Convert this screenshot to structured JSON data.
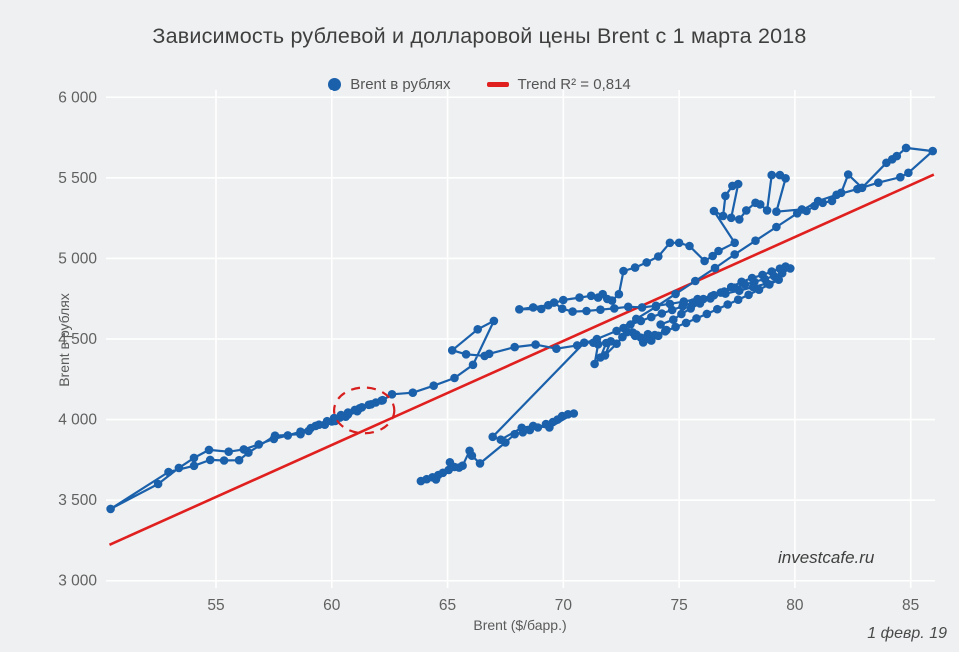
{
  "title": "Зависимость рублевой и долларовой цены Brent с 1 марта 2018",
  "watermark": "investcafe.ru",
  "date_label": "1 февр. 19",
  "legend": {
    "series_label": "Brent в рублях",
    "trend_label": "Trend R² = 0,814"
  },
  "colors": {
    "background": "#eff0f1",
    "grid": "#ffffff",
    "series": "#1a60ab",
    "trend": "#e01f1f",
    "annotation": "#d81f1f",
    "tick_text": "#616161",
    "title_text": "#3f3f3f"
  },
  "chart_data": {
    "type": "scatter",
    "title": "Зависимость рублевой и долларовой цены Brent с 1 марта 2018",
    "xlabel": "Brent ($/барр.)",
    "ylabel": "Brent в рублях",
    "xlim": [
      50.25,
      86.05
    ],
    "ylim": [
      2955,
      6045
    ],
    "grid": true,
    "legend_position": "top-center",
    "x_ticks": [
      55,
      60,
      65,
      70,
      75,
      80,
      85
    ],
    "y_ticks": [
      {
        "v": 3000,
        "label": "3 000"
      },
      {
        "v": 3500,
        "label": "3 500"
      },
      {
        "v": 4000,
        "label": "4 000"
      },
      {
        "v": 4500,
        "label": "4 500"
      },
      {
        "v": 5000,
        "label": "5 000"
      },
      {
        "v": 5500,
        "label": "5 500"
      },
      {
        "v": 6000,
        "label": "6 000"
      }
    ],
    "trend": {
      "r2": "0,814",
      "x1": 50.4,
      "y1": 3223,
      "x2": 86.0,
      "y2": 5520
    },
    "annotation_ellipse": {
      "cx": 61.4,
      "cy": 4057,
      "rx": 1.3,
      "ry": 142
    },
    "points": [
      [
        63.85,
        3618
      ],
      [
        64.1,
        3630
      ],
      [
        64.35,
        3642
      ],
      [
        64.6,
        3656
      ],
      [
        64.5,
        3628
      ],
      [
        64.8,
        3670
      ],
      [
        65.05,
        3688
      ],
      [
        65.1,
        3735
      ],
      [
        65.3,
        3706
      ],
      [
        65.5,
        3702
      ],
      [
        65.65,
        3714
      ],
      [
        65.95,
        3806
      ],
      [
        66.05,
        3776
      ],
      [
        66.4,
        3728
      ],
      [
        67.5,
        3858
      ],
      [
        67.9,
        3909
      ],
      [
        68.25,
        3921
      ],
      [
        68.55,
        3935
      ],
      [
        68.9,
        3951
      ],
      [
        69.25,
        3972
      ],
      [
        69.55,
        3985
      ],
      [
        69.75,
        4000
      ],
      [
        69.95,
        4022
      ],
      [
        70.2,
        4033
      ],
      [
        70.45,
        4038
      ],
      [
        69.4,
        3951
      ],
      [
        68.7,
        3961
      ],
      [
        68.2,
        3949
      ],
      [
        67.3,
        3875
      ],
      [
        66.95,
        3893
      ],
      [
        70.9,
        4477
      ],
      [
        71.3,
        4477
      ],
      [
        71.5,
        4467
      ],
      [
        71.35,
        4345
      ],
      [
        71.6,
        4385
      ],
      [
        71.85,
        4475
      ],
      [
        72.05,
        4486
      ],
      [
        71.8,
        4398
      ],
      [
        72.3,
        4471
      ],
      [
        72.55,
        4512
      ],
      [
        73.0,
        4540
      ],
      [
        73.15,
        4528
      ],
      [
        73.35,
        4508
      ],
      [
        73.65,
        4530
      ],
      [
        73.45,
        4478
      ],
      [
        73.8,
        4490
      ],
      [
        74.1,
        4520
      ],
      [
        74.45,
        4555
      ],
      [
        74.2,
        4590
      ],
      [
        74.75,
        4620
      ],
      [
        75.1,
        4655
      ],
      [
        75.5,
        4690
      ],
      [
        75.9,
        4720
      ],
      [
        76.35,
        4752
      ],
      [
        76.8,
        4788
      ],
      [
        77.25,
        4822
      ],
      [
        77.7,
        4855
      ],
      [
        78.15,
        4878
      ],
      [
        78.6,
        4898
      ],
      [
        79.0,
        4918
      ],
      [
        79.35,
        4936
      ],
      [
        79.6,
        4950
      ],
      [
        79.8,
        4938
      ],
      [
        79.45,
        4908
      ],
      [
        79.1,
        4890
      ],
      [
        78.7,
        4872
      ],
      [
        78.25,
        4855
      ],
      [
        77.85,
        4838
      ],
      [
        77.4,
        4818
      ],
      [
        76.95,
        4795
      ],
      [
        76.5,
        4772
      ],
      [
        76.05,
        4748
      ],
      [
        75.6,
        4726
      ],
      [
        75.15,
        4703
      ],
      [
        74.7,
        4680
      ],
      [
        74.25,
        4658
      ],
      [
        73.8,
        4636
      ],
      [
        73.35,
        4612
      ],
      [
        72.9,
        4590
      ],
      [
        72.6,
        4568
      ],
      [
        72.75,
        4543
      ],
      [
        73.1,
        4520
      ],
      [
        73.5,
        4500
      ],
      [
        73.95,
        4524
      ],
      [
        74.4,
        4548
      ],
      [
        74.85,
        4574
      ],
      [
        75.3,
        4600
      ],
      [
        75.75,
        4628
      ],
      [
        76.2,
        4656
      ],
      [
        76.65,
        4685
      ],
      [
        77.1,
        4714
      ],
      [
        77.55,
        4744
      ],
      [
        78.0,
        4774
      ],
      [
        78.45,
        4806
      ],
      [
        78.9,
        4838
      ],
      [
        79.3,
        4868
      ],
      [
        78.8,
        4845
      ],
      [
        78.2,
        4822
      ],
      [
        77.6,
        4800
      ],
      [
        77.0,
        4782
      ],
      [
        76.4,
        4765
      ],
      [
        75.8,
        4748
      ],
      [
        75.2,
        4732
      ],
      [
        74.6,
        4718
      ],
      [
        74.0,
        4706
      ],
      [
        73.4,
        4696
      ],
      [
        72.8,
        4700
      ],
      [
        72.2,
        4690
      ],
      [
        71.6,
        4682
      ],
      [
        71.0,
        4674
      ],
      [
        70.4,
        4670
      ],
      [
        69.95,
        4688
      ],
      [
        69.6,
        4726
      ],
      [
        69.05,
        4686
      ],
      [
        68.1,
        4684
      ],
      [
        68.7,
        4696
      ],
      [
        69.35,
        4710
      ],
      [
        70.0,
        4742
      ],
      [
        70.7,
        4757
      ],
      [
        71.2,
        4768
      ],
      [
        71.5,
        4757
      ],
      [
        71.7,
        4778
      ],
      [
        71.9,
        4748
      ],
      [
        72.1,
        4738
      ],
      [
        72.4,
        4778
      ],
      [
        72.6,
        4922
      ],
      [
        73.1,
        4943
      ],
      [
        73.6,
        4975
      ],
      [
        74.1,
        5012
      ],
      [
        74.6,
        5097
      ],
      [
        75.0,
        5097
      ],
      [
        75.45,
        5077
      ],
      [
        76.1,
        4984
      ],
      [
        76.45,
        5015
      ],
      [
        76.7,
        5046
      ],
      [
        77.4,
        5097
      ],
      [
        76.5,
        5294
      ],
      [
        76.9,
        5264
      ],
      [
        77.0,
        5388
      ],
      [
        77.3,
        5450
      ],
      [
        77.55,
        5462
      ],
      [
        77.25,
        5252
      ],
      [
        77.6,
        5242
      ],
      [
        77.9,
        5298
      ],
      [
        78.3,
        5345
      ],
      [
        78.5,
        5335
      ],
      [
        78.8,
        5298
      ],
      [
        79.0,
        5517
      ],
      [
        79.35,
        5517
      ],
      [
        79.6,
        5497
      ],
      [
        79.2,
        5290
      ],
      [
        80.3,
        5304
      ],
      [
        80.5,
        5294
      ],
      [
        80.85,
        5325
      ],
      [
        81.2,
        5345
      ],
      [
        81.6,
        5356
      ],
      [
        82.0,
        5407
      ],
      [
        82.3,
        5521
      ],
      [
        82.9,
        5438
      ],
      [
        83.95,
        5593
      ],
      [
        84.2,
        5615
      ],
      [
        84.4,
        5635
      ],
      [
        84.8,
        5686
      ],
      [
        85.95,
        5666
      ],
      [
        84.9,
        5531
      ],
      [
        84.55,
        5504
      ],
      [
        83.6,
        5470
      ],
      [
        82.7,
        5430
      ],
      [
        81.8,
        5395
      ],
      [
        81.0,
        5356
      ],
      [
        80.1,
        5280
      ],
      [
        79.2,
        5195
      ],
      [
        78.3,
        5110
      ],
      [
        77.4,
        5025
      ],
      [
        76.55,
        4940
      ],
      [
        75.7,
        4860
      ],
      [
        74.85,
        4780
      ],
      [
        74.0,
        4700
      ],
      [
        73.15,
        4625
      ],
      [
        72.3,
        4550
      ],
      [
        71.45,
        4500
      ],
      [
        70.6,
        4460
      ],
      [
        69.7,
        4440
      ],
      [
        68.8,
        4465
      ],
      [
        67.9,
        4450
      ],
      [
        66.8,
        4408
      ],
      [
        66.6,
        4395
      ],
      [
        65.8,
        4405
      ],
      [
        65.2,
        4430
      ],
      [
        66.3,
        4560
      ],
      [
        67.0,
        4612
      ],
      [
        66.1,
        4340
      ],
      [
        65.3,
        4258
      ],
      [
        64.4,
        4210
      ],
      [
        63.5,
        4167
      ],
      [
        62.6,
        4157
      ],
      [
        62.2,
        4120
      ],
      [
        61.7,
        4095
      ],
      [
        61.2,
        4070
      ],
      [
        60.7,
        4040
      ],
      [
        60.2,
        4005
      ],
      [
        60.0,
        3988
      ],
      [
        60.35,
        4012
      ],
      [
        60.7,
        4032
      ],
      [
        61.1,
        4052
      ],
      [
        60.6,
        4018
      ],
      [
        60.15,
        3992
      ],
      [
        59.7,
        3968
      ],
      [
        59.3,
        3961
      ],
      [
        59.0,
        3930
      ],
      [
        58.65,
        3909
      ],
      [
        57.55,
        3900
      ],
      [
        56.4,
        3795
      ],
      [
        56.0,
        3748
      ],
      [
        55.35,
        3746
      ],
      [
        54.75,
        3750
      ],
      [
        54.05,
        3713
      ],
      [
        52.95,
        3675
      ],
      [
        50.45,
        3446
      ],
      [
        52.5,
        3600
      ],
      [
        53.4,
        3700
      ],
      [
        54.05,
        3762
      ],
      [
        54.7,
        3812
      ],
      [
        55.55,
        3801
      ],
      [
        56.2,
        3815
      ],
      [
        56.85,
        3846
      ],
      [
        57.5,
        3880
      ],
      [
        58.1,
        3902
      ],
      [
        58.65,
        3925
      ],
      [
        59.1,
        3948
      ],
      [
        59.45,
        3968
      ],
      [
        59.8,
        3990
      ],
      [
        60.1,
        4010
      ],
      [
        60.4,
        4028
      ],
      [
        60.7,
        4044
      ],
      [
        61.0,
        4060
      ],
      [
        61.3,
        4076
      ],
      [
        61.6,
        4092
      ],
      [
        61.9,
        4106
      ],
      [
        62.15,
        4118
      ]
    ]
  }
}
